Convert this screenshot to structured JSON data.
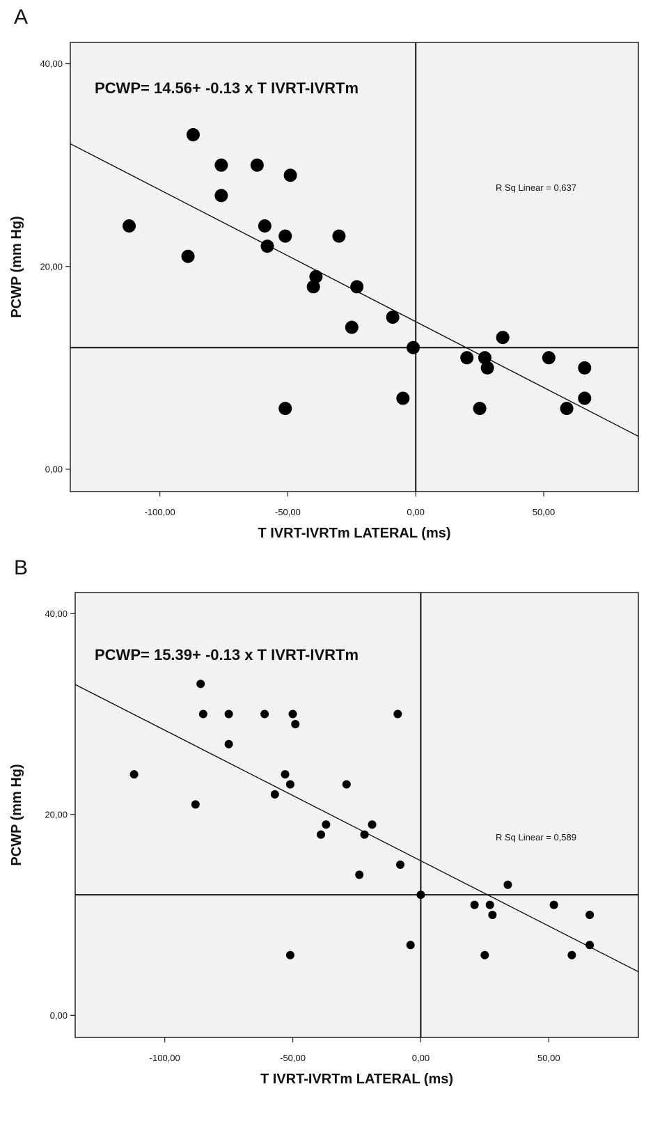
{
  "chart_data": [
    {
      "type": "scatter",
      "panel_label": "A",
      "equation": "PCWP= 14.56+ -0.13 x T IVRT-IVRTm",
      "r_squared_label": "R Sq Linear = 0,637",
      "xlabel": "T IVRT-IVRTm LATERAL (ms)",
      "ylabel": "PCWP (mm Hg)",
      "xlim": [
        -135,
        87
      ],
      "ylim": [
        -2.2,
        42.1
      ],
      "x_ticks": [
        -100,
        -50,
        0,
        50
      ],
      "x_tick_labels": [
        "-100,00",
        "-50,00",
        "0,00",
        "50,00"
      ],
      "y_ticks": [
        0,
        20,
        40
      ],
      "y_tick_labels": [
        "0,00",
        "20,00",
        "40,00"
      ],
      "reference_lines": {
        "x": 0,
        "y": 12
      },
      "fit_line": {
        "intercept": 14.56,
        "slope": -0.13
      },
      "points": [
        {
          "x": -112,
          "y": 24
        },
        {
          "x": -89,
          "y": 21
        },
        {
          "x": -87,
          "y": 33
        },
        {
          "x": -76,
          "y": 30
        },
        {
          "x": -76,
          "y": 27
        },
        {
          "x": -62,
          "y": 30
        },
        {
          "x": -59,
          "y": 24
        },
        {
          "x": -58,
          "y": 22
        },
        {
          "x": -51,
          "y": 23
        },
        {
          "x": -51,
          "y": 6
        },
        {
          "x": -49,
          "y": 29
        },
        {
          "x": -40,
          "y": 18
        },
        {
          "x": -39,
          "y": 19
        },
        {
          "x": -30,
          "y": 23
        },
        {
          "x": -25,
          "y": 14
        },
        {
          "x": -23,
          "y": 18
        },
        {
          "x": -9,
          "y": 15
        },
        {
          "x": -5,
          "y": 7
        },
        {
          "x": -1,
          "y": 12
        },
        {
          "x": 20,
          "y": 11
        },
        {
          "x": 25,
          "y": 6
        },
        {
          "x": 27,
          "y": 11
        },
        {
          "x": 28,
          "y": 10
        },
        {
          "x": 34,
          "y": 13
        },
        {
          "x": 52,
          "y": 11
        },
        {
          "x": 59,
          "y": 6
        },
        {
          "x": 66,
          "y": 10
        },
        {
          "x": 66,
          "y": 7
        }
      ],
      "grid": false
    },
    {
      "type": "scatter",
      "panel_label": "B",
      "equation": "PCWP= 15.39+ -0.13 x T IVRT-IVRTm",
      "r_squared_label": "R Sq Linear = 0,589",
      "xlabel": "T IVRT-IVRTm LATERAL (ms)",
      "ylabel": "PCWP (mm Hg)",
      "xlim": [
        -135,
        85
      ],
      "ylim": [
        -2.2,
        42.1
      ],
      "x_ticks": [
        -100,
        -50,
        0,
        50
      ],
      "x_tick_labels": [
        "-100,00",
        "-50,00",
        "0,00",
        "50,00"
      ],
      "y_ticks": [
        0,
        20,
        40
      ],
      "y_tick_labels": [
        "0,00",
        "20,00",
        "40,00"
      ],
      "reference_lines": {
        "x": 0,
        "y": 12
      },
      "fit_line": {
        "intercept": 15.39,
        "slope": -0.13
      },
      "points": [
        {
          "x": -112,
          "y": 24
        },
        {
          "x": -88,
          "y": 21
        },
        {
          "x": -86,
          "y": 33
        },
        {
          "x": -85,
          "y": 30
        },
        {
          "x": -75,
          "y": 30
        },
        {
          "x": -75,
          "y": 27
        },
        {
          "x": -61,
          "y": 30
        },
        {
          "x": -57,
          "y": 22
        },
        {
          "x": -53,
          "y": 24
        },
        {
          "x": -51,
          "y": 23
        },
        {
          "x": -51,
          "y": 6
        },
        {
          "x": -50,
          "y": 30
        },
        {
          "x": -49,
          "y": 29
        },
        {
          "x": -39,
          "y": 18
        },
        {
          "x": -37,
          "y": 19
        },
        {
          "x": -29,
          "y": 23
        },
        {
          "x": -24,
          "y": 14
        },
        {
          "x": -22,
          "y": 18
        },
        {
          "x": -19,
          "y": 19
        },
        {
          "x": -9,
          "y": 30
        },
        {
          "x": -8,
          "y": 15
        },
        {
          "x": -4,
          "y": 7
        },
        {
          "x": 0,
          "y": 12
        },
        {
          "x": 21,
          "y": 11
        },
        {
          "x": 25,
          "y": 6
        },
        {
          "x": 27,
          "y": 11
        },
        {
          "x": 28,
          "y": 10
        },
        {
          "x": 34,
          "y": 13
        },
        {
          "x": 52,
          "y": 11
        },
        {
          "x": 59,
          "y": 6
        },
        {
          "x": 66,
          "y": 10
        },
        {
          "x": 66,
          "y": 7
        }
      ],
      "grid": false
    }
  ]
}
